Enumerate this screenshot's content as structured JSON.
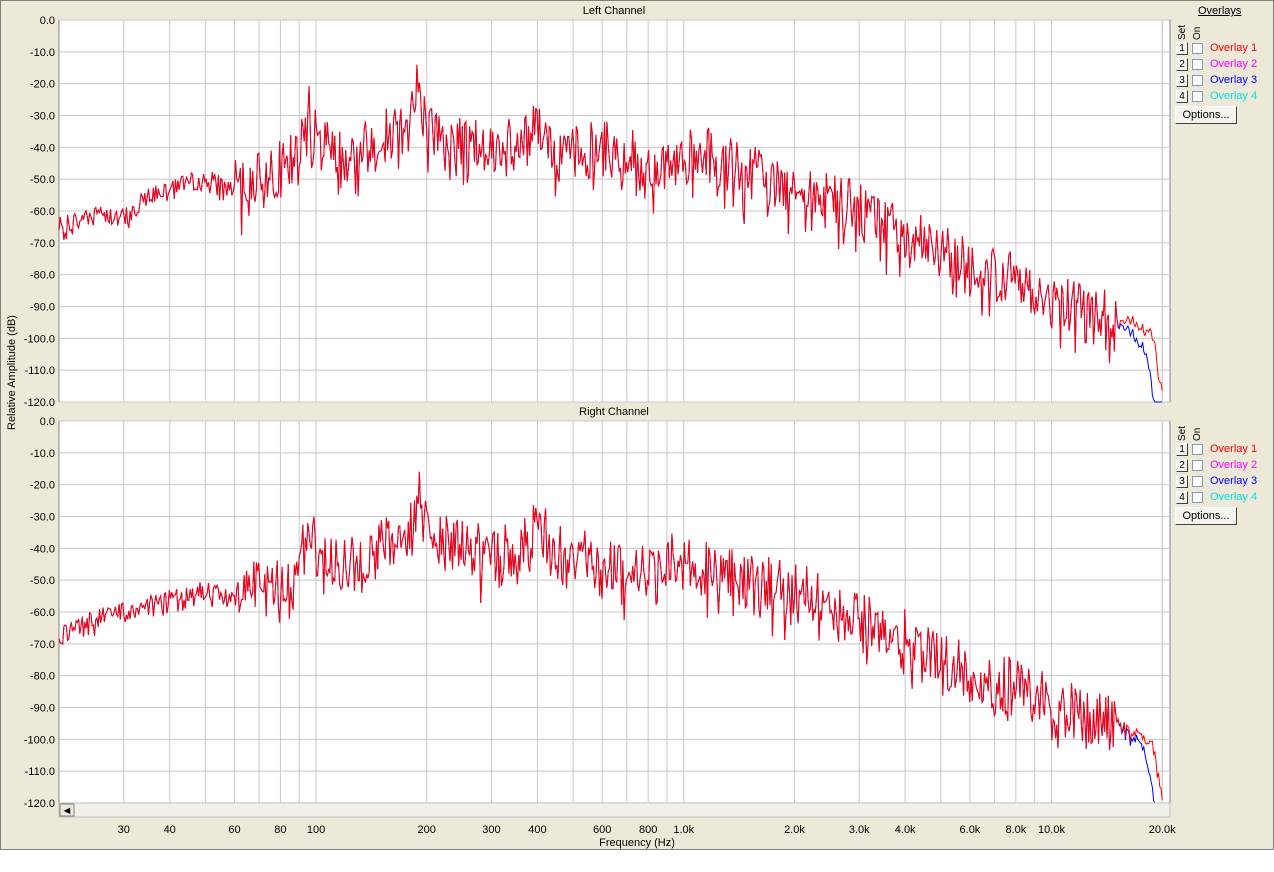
{
  "left_title": "Left Channel",
  "right_title": "Right Channel",
  "y_axis_label": "Relative Amplitude (dB)",
  "x_axis_label": "Frequency (Hz)",
  "y_ticks": [
    "0.0",
    "-10.0",
    "-20.0",
    "-30.0",
    "-40.0",
    "-50.0",
    "-60.0",
    "-70.0",
    "-80.0",
    "-90.0",
    "-100.0",
    "-110.0",
    "-120.0"
  ],
  "x_ticks": [
    {
      "f": 30,
      "label": "30"
    },
    {
      "f": 40,
      "label": "40"
    },
    {
      "f": 60,
      "label": "60"
    },
    {
      "f": 80,
      "label": "80"
    },
    {
      "f": 100,
      "label": "100"
    },
    {
      "f": 200,
      "label": "200"
    },
    {
      "f": 300,
      "label": "300"
    },
    {
      "f": 400,
      "label": "400"
    },
    {
      "f": 600,
      "label": "600"
    },
    {
      "f": 800,
      "label": "800"
    },
    {
      "f": 1000,
      "label": "1.0k"
    },
    {
      "f": 2000,
      "label": "2.0k"
    },
    {
      "f": 3000,
      "label": "3.0k"
    },
    {
      "f": 4000,
      "label": "4.0k"
    },
    {
      "f": 6000,
      "label": "6.0k"
    },
    {
      "f": 8000,
      "label": "8.0k"
    },
    {
      "f": 10000,
      "label": "10.0k"
    },
    {
      "f": 20000,
      "label": "20.0k"
    }
  ],
  "overlays": {
    "header": "Overlays",
    "col_set": "Set",
    "col_on": "On",
    "options_label": "Options...",
    "items": [
      {
        "num": "1",
        "label": "Overlay 1",
        "color": "#ff0000"
      },
      {
        "num": "2",
        "label": "Overlay 2",
        "color": "#ff00ff"
      },
      {
        "num": "3",
        "label": "Overlay 3",
        "color": "#0000ff"
      },
      {
        "num": "4",
        "label": "Overlay 4",
        "color": "#00ffff"
      }
    ]
  },
  "scroll_left_glyph": "◄",
  "chart_data": [
    {
      "type": "line",
      "title": "Left Channel",
      "xlabel": "Frequency (Hz)",
      "ylabel": "Relative Amplitude (dB)",
      "xscale": "log",
      "xlim": [
        20,
        21000
      ],
      "ylim": [
        -120,
        0
      ],
      "grid": true,
      "series": [
        {
          "name": "Overlay 1",
          "color": "#ff0000",
          "x": [
            20,
            25,
            30,
            35,
            40,
            50,
            60,
            70,
            80,
            90,
            95,
            100,
            120,
            150,
            180,
            190,
            200,
            250,
            300,
            350,
            400,
            450,
            500,
            600,
            700,
            800,
            900,
            1000,
            1200,
            1500,
            2000,
            2500,
            3000,
            4000,
            5000,
            6000,
            7000,
            8000,
            9000,
            10000,
            12000,
            15000,
            17000,
            18000,
            19000,
            20000
          ],
          "y": [
            -65,
            -60,
            -62,
            -55,
            -52,
            -50,
            -53,
            -48,
            -47,
            -43,
            -27,
            -38,
            -42,
            -38,
            -28,
            -20,
            -35,
            -38,
            -40,
            -40,
            -32,
            -40,
            -42,
            -40,
            -43,
            -45,
            -44,
            -43,
            -43,
            -48,
            -52,
            -56,
            -60,
            -66,
            -72,
            -78,
            -80,
            -82,
            -85,
            -88,
            -90,
            -93,
            -95,
            -97,
            -100,
            -118
          ]
        },
        {
          "name": "Overlay 3",
          "color": "#0000ff",
          "x": [
            20,
            25,
            30,
            35,
            40,
            50,
            60,
            70,
            80,
            90,
            95,
            100,
            120,
            150,
            180,
            190,
            200,
            250,
            300,
            350,
            400,
            450,
            500,
            600,
            700,
            800,
            900,
            1000,
            1200,
            1500,
            2000,
            2500,
            3000,
            4000,
            5000,
            6000,
            7000,
            8000,
            9000,
            10000,
            12000,
            15000,
            17000,
            18000,
            19000,
            20000
          ],
          "y": [
            -65,
            -60,
            -62,
            -55,
            -52,
            -50,
            -53,
            -48,
            -47,
            -43,
            -27,
            -38,
            -42,
            -38,
            -28,
            -20,
            -35,
            -38,
            -40,
            -40,
            -32,
            -40,
            -42,
            -40,
            -43,
            -45,
            -44,
            -43,
            -43,
            -48,
            -52,
            -56,
            -60,
            -66,
            -72,
            -78,
            -80,
            -82,
            -85,
            -88,
            -90,
            -93,
            -100,
            -103,
            -120,
            -120
          ]
        }
      ]
    },
    {
      "type": "line",
      "title": "Right Channel",
      "xlabel": "Frequency (Hz)",
      "ylabel": "Relative Amplitude (dB)",
      "xscale": "log",
      "xlim": [
        20,
        21000
      ],
      "ylim": [
        -120,
        0
      ],
      "grid": true,
      "series": [
        {
          "name": "Overlay 1",
          "color": "#ff0000",
          "x": [
            20,
            25,
            30,
            35,
            40,
            50,
            60,
            70,
            80,
            90,
            95,
            100,
            120,
            150,
            180,
            190,
            200,
            250,
            300,
            350,
            400,
            450,
            500,
            600,
            700,
            800,
            900,
            1000,
            1200,
            1500,
            2000,
            2500,
            3000,
            4000,
            5000,
            6000,
            7000,
            8000,
            9000,
            10000,
            12000,
            15000,
            17000,
            18000,
            19000,
            20000
          ],
          "y": [
            -68,
            -62,
            -60,
            -58,
            -56,
            -53,
            -55,
            -50,
            -50,
            -44,
            -28,
            -40,
            -45,
            -40,
            -30,
            -22,
            -36,
            -40,
            -42,
            -40,
            -33,
            -40,
            -43,
            -43,
            -46,
            -48,
            -44,
            -43,
            -48,
            -50,
            -53,
            -57,
            -62,
            -68,
            -74,
            -80,
            -82,
            -83,
            -86,
            -89,
            -92,
            -95,
            -98,
            -100,
            -103,
            -119
          ]
        },
        {
          "name": "Overlay 3",
          "color": "#0000ff",
          "x": [
            20,
            25,
            30,
            35,
            40,
            50,
            60,
            70,
            80,
            90,
            95,
            100,
            120,
            150,
            180,
            190,
            200,
            250,
            300,
            350,
            400,
            450,
            500,
            600,
            700,
            800,
            900,
            1000,
            1200,
            1500,
            2000,
            2500,
            3000,
            4000,
            5000,
            6000,
            7000,
            8000,
            9000,
            10000,
            12000,
            15000,
            17000,
            18000,
            19000,
            20000
          ],
          "y": [
            -68,
            -62,
            -60,
            -58,
            -56,
            -53,
            -55,
            -50,
            -50,
            -44,
            -28,
            -40,
            -45,
            -40,
            -30,
            -22,
            -36,
            -40,
            -42,
            -40,
            -33,
            -40,
            -43,
            -43,
            -46,
            -48,
            -44,
            -43,
            -48,
            -50,
            -53,
            -57,
            -62,
            -68,
            -74,
            -80,
            -82,
            -83,
            -86,
            -89,
            -92,
            -95,
            -100,
            -104,
            -120,
            -120
          ]
        }
      ]
    }
  ]
}
